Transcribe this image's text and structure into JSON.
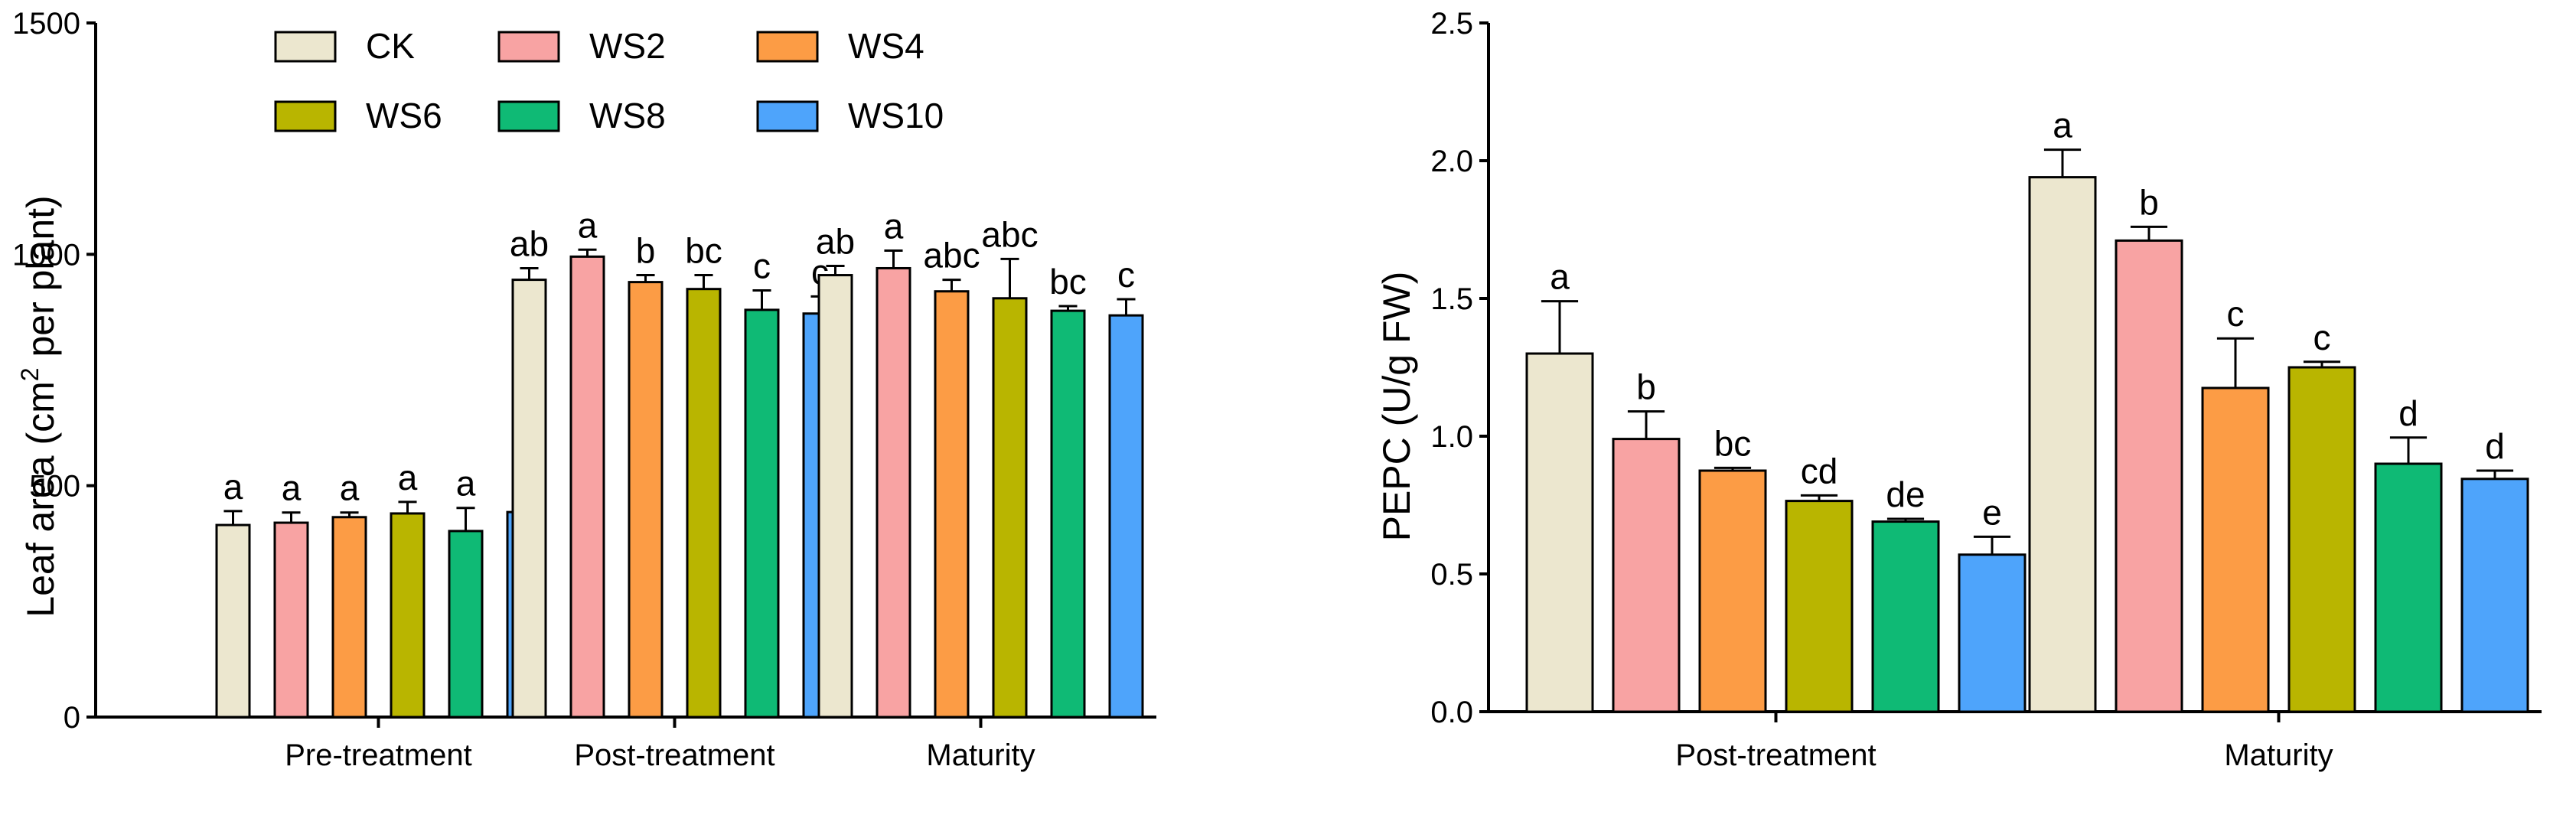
{
  "treatments": [
    "CK",
    "WS2",
    "WS4",
    "WS6",
    "WS8",
    "WS10"
  ],
  "colors": [
    "#ece7cf",
    "#f8a3a3",
    "#fc9c45",
    "#b9b500",
    "#0fba75",
    "#4ea4fb"
  ],
  "chart_data": [
    {
      "type": "bar",
      "title": "",
      "xlabel": "",
      "ylabel": "Leaf area (cm² per plant)",
      "ylabel_parts": {
        "before": "Leaf area (cm",
        "sup": "2",
        "after": " per plant)"
      },
      "ylim": [
        0,
        1500
      ],
      "yticks": [
        "0",
        "500",
        "1000",
        "1500"
      ],
      "categories": [
        "Pre-treatment",
        "Post-treatment",
        "Maturity"
      ],
      "series": [
        {
          "name": "CK",
          "values": [
            415,
            945,
            955
          ],
          "errors": [
            30,
            25,
            20
          ],
          "letters": [
            "a",
            "ab",
            "ab"
          ]
        },
        {
          "name": "WS2",
          "values": [
            420,
            995,
            970
          ],
          "errors": [
            22,
            15,
            38
          ],
          "letters": [
            "a",
            "a",
            "a"
          ]
        },
        {
          "name": "WS4",
          "values": [
            432,
            940,
            920
          ],
          "errors": [
            10,
            15,
            25
          ],
          "letters": [
            "a",
            "b",
            "abc"
          ]
        },
        {
          "name": "WS6",
          "values": [
            440,
            925,
            905
          ],
          "errors": [
            25,
            30,
            85
          ],
          "letters": [
            "a",
            "bc",
            "abc"
          ]
        },
        {
          "name": "WS8",
          "values": [
            402,
            880,
            878
          ],
          "errors": [
            50,
            42,
            10
          ],
          "letters": [
            "a",
            "c",
            "bc"
          ]
        },
        {
          "name": "WS10",
          "values": [
            443,
            872,
            868
          ],
          "errors": [
            35,
            37,
            35
          ],
          "letters": [
            "a",
            "c",
            "c"
          ]
        }
      ],
      "legend": {
        "placement": "top-left",
        "rows": [
          [
            "CK",
            "WS2",
            "WS4"
          ],
          [
            "WS6",
            "WS8",
            "WS10"
          ]
        ]
      }
    },
    {
      "type": "bar",
      "title": "",
      "xlabel": "",
      "ylabel": "PEPC (U/g FW)",
      "ylim": [
        0,
        2.5
      ],
      "yticks": [
        "0.0",
        "0.5",
        "1.0",
        "1.5",
        "2.0",
        "2.5"
      ],
      "categories": [
        "Post-treatment",
        "Maturity"
      ],
      "series": [
        {
          "name": "CK",
          "values": [
            1.3,
            1.94
          ],
          "errors": [
            0.19,
            0.1
          ],
          "letters": [
            "a",
            "a"
          ]
        },
        {
          "name": "WS2",
          "values": [
            0.99,
            1.71
          ],
          "errors": [
            0.1,
            0.05
          ],
          "letters": [
            "b",
            "b"
          ]
        },
        {
          "name": "WS4",
          "values": [
            0.875,
            1.175
          ],
          "errors": [
            0.01,
            0.18
          ],
          "letters": [
            "bc",
            "c"
          ]
        },
        {
          "name": "WS6",
          "values": [
            0.765,
            1.25
          ],
          "errors": [
            0.02,
            0.02
          ],
          "letters": [
            "cd",
            "c"
          ]
        },
        {
          "name": "WS8",
          "values": [
            0.69,
            0.9
          ],
          "errors": [
            0.01,
            0.095
          ],
          "letters": [
            "de",
            "d"
          ]
        },
        {
          "name": "WS10",
          "values": [
            0.57,
            0.845
          ],
          "errors": [
            0.065,
            0.03
          ],
          "letters": [
            "e",
            "d"
          ]
        }
      ]
    }
  ]
}
